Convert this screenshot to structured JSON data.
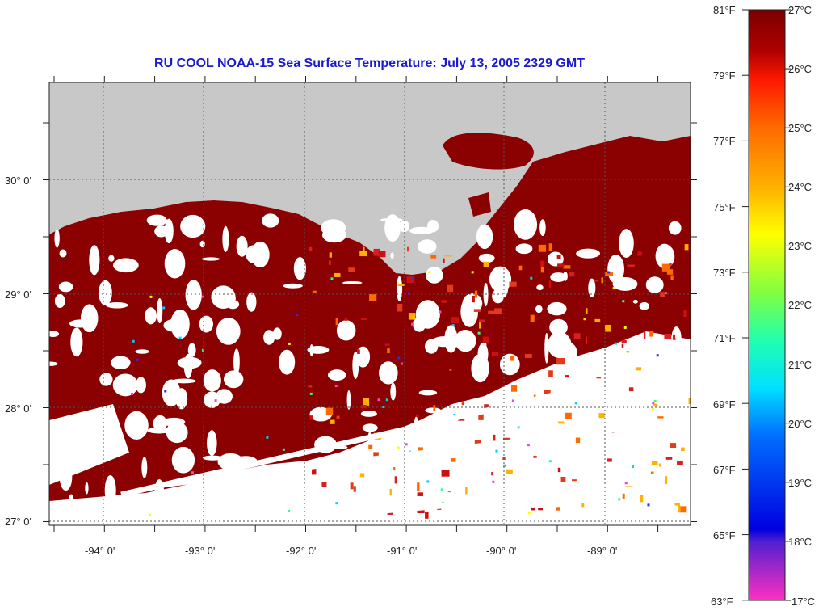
{
  "title": "RU COOL  NOAA-15  Sea Surface Temperature:  July 13, 2005 2329 GMT",
  "map": {
    "lat_labels": [
      "30° 0'",
      "29° 0'",
      "28° 0'",
      "27° 0'"
    ],
    "lon_labels": [
      "-94° 0'",
      "-93° 0'",
      "-92° 0'",
      "-91° 0'",
      "-90° 0'",
      "-89° 0'"
    ],
    "colors": {
      "land": "#c8c8c8",
      "sst_warm": "#8b0000",
      "sst_red": "#d42020",
      "no_data": "#ffffff"
    }
  },
  "colorbar": {
    "fahrenheit_labels": [
      "81°F",
      "79°F",
      "77°F",
      "75°F",
      "73°F",
      "71°F",
      "69°F",
      "67°F",
      "65°F",
      "63°F"
    ],
    "celsius_labels": [
      "27°C",
      "26°C",
      "25°C",
      "24°C",
      "23°C",
      "22°C",
      "21°C",
      "20°C",
      "19°C",
      "18°C",
      "17°C"
    ],
    "min_c": 17,
    "max_c": 27
  }
}
